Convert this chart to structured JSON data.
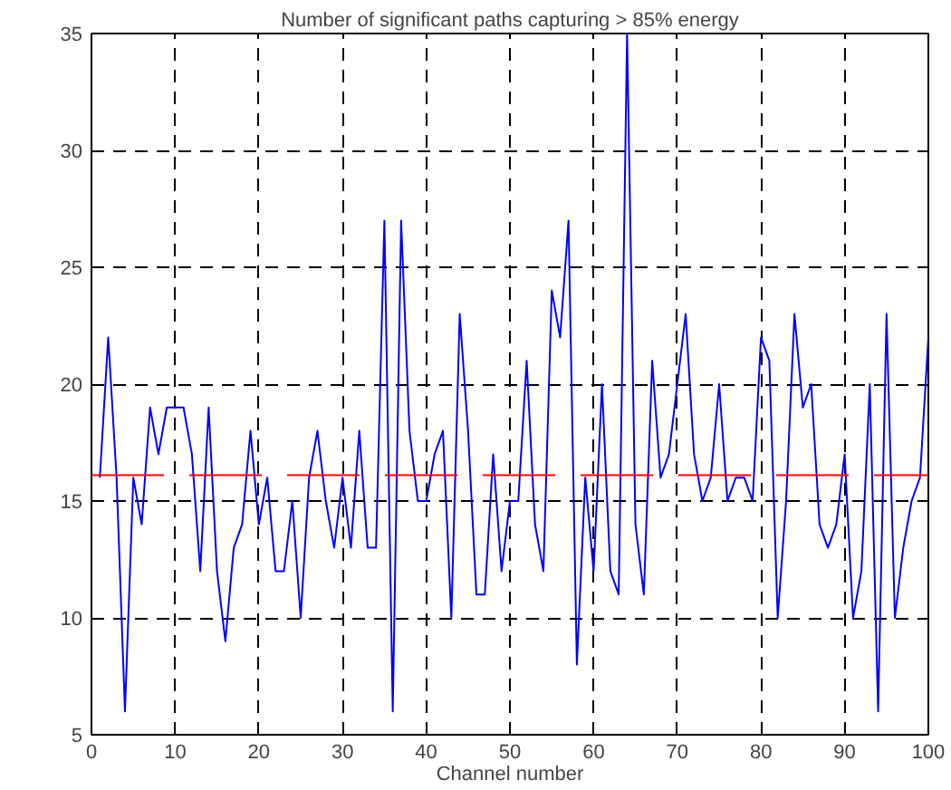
{
  "chart_data": {
    "type": "line",
    "title": "Number of significant paths capturing > 85% energy",
    "xlabel": "Channel number",
    "x": [
      1,
      2,
      3,
      4,
      5,
      6,
      7,
      8,
      9,
      10,
      11,
      12,
      13,
      14,
      15,
      16,
      17,
      18,
      19,
      20,
      21,
      22,
      23,
      24,
      25,
      26,
      27,
      28,
      29,
      30,
      31,
      32,
      33,
      34,
      35,
      36,
      37,
      38,
      39,
      40,
      41,
      42,
      43,
      44,
      45,
      46,
      47,
      48,
      49,
      50,
      51,
      52,
      53,
      54,
      55,
      56,
      57,
      58,
      59,
      60,
      61,
      62,
      63,
      64,
      65,
      66,
      67,
      68,
      69,
      70,
      71,
      72,
      73,
      74,
      75,
      76,
      77,
      78,
      79,
      80,
      81,
      82,
      83,
      84,
      85,
      86,
      87,
      88,
      89,
      90,
      91,
      92,
      93,
      94,
      95,
      96,
      97,
      98,
      99,
      100
    ],
    "series": [
      {
        "color": "#0000ff",
        "values": [
          16,
          22,
          16,
          6,
          16,
          14,
          19,
          17,
          19,
          19,
          19,
          17,
          12,
          19,
          12,
          9,
          13,
          14,
          18,
          14,
          16,
          12,
          12,
          15,
          10,
          16,
          18,
          15,
          13,
          16,
          13,
          18,
          13,
          13,
          27,
          6,
          27,
          18,
          15,
          15,
          17,
          18,
          10,
          23,
          18,
          11,
          11,
          17,
          12,
          15,
          15,
          21,
          14,
          12,
          24,
          22,
          27,
          8,
          16,
          12,
          20,
          12,
          11,
          35,
          14,
          11,
          21,
          16,
          17,
          20,
          23,
          17,
          15,
          16,
          20,
          15,
          16,
          16,
          15,
          22,
          21,
          10,
          15,
          23,
          19,
          20,
          14,
          13,
          14,
          17,
          10,
          12,
          20,
          6,
          23,
          10,
          13,
          15,
          16,
          22
        ]
      }
    ],
    "ref_lines": [
      {
        "axis": "y",
        "value": 16.1,
        "color": "#ff0000",
        "line_style": "dashed"
      }
    ],
    "xlim": [
      0,
      100
    ],
    "ylim": [
      5,
      35
    ],
    "xticks": [
      0,
      10,
      20,
      30,
      40,
      50,
      60,
      70,
      80,
      90,
      100
    ],
    "yticks": [
      5,
      10,
      15,
      20,
      25,
      30,
      35
    ],
    "grid": true,
    "marker": "none",
    "line_style": "solid"
  }
}
